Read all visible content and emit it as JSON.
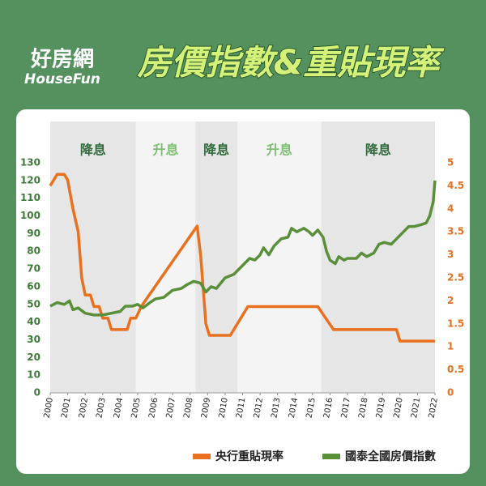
{
  "header": {
    "logo_zh": "好房網",
    "logo_en": "HouseFun",
    "title": "房價指數&重貼現率"
  },
  "chart_data": {
    "type": "line",
    "xlim": [
      2000,
      2022
    ],
    "xticks": [
      2000,
      2001,
      2002,
      2003,
      2004,
      2005,
      2006,
      2007,
      2008,
      2009,
      2010,
      2011,
      2012,
      2013,
      2014,
      2015,
      2016,
      2017,
      2018,
      2019,
      2020,
      2021,
      2022
    ],
    "ylim": [
      0,
      130
    ],
    "yticks": [
      0,
      10,
      20,
      30,
      40,
      50,
      60,
      70,
      80,
      90,
      100,
      110,
      120,
      130
    ],
    "y2lim": [
      0,
      5
    ],
    "y2ticks": [
      0,
      0.5,
      1,
      1.5,
      2,
      2.5,
      3,
      3.5,
      4,
      4.5,
      5
    ],
    "bands": [
      {
        "label": "降息",
        "start": 2000,
        "end": 2004.9,
        "color": "#e6e6e6",
        "text_color": "#2f6b3a"
      },
      {
        "label": "升息",
        "start": 2004.9,
        "end": 2008.3,
        "color": "#f4f4f4",
        "text_color": "#7cbf72"
      },
      {
        "label": "降息",
        "start": 2008.3,
        "end": 2010.7,
        "color": "#e6e6e6",
        "text_color": "#2f6b3a"
      },
      {
        "label": "升息",
        "start": 2010.7,
        "end": 2015.5,
        "color": "#f4f4f4",
        "text_color": "#7cbf72"
      },
      {
        "label": "降息",
        "start": 2015.5,
        "end": 2022,
        "color": "#e6e6e6",
        "text_color": "#2f6b3a"
      }
    ],
    "series": [
      {
        "name": "央行重貼現率",
        "color": "#e8701e",
        "axis": "y2",
        "x": [
          2000.0,
          2000.4,
          2000.8,
          2001.0,
          2001.3,
          2001.6,
          2001.8,
          2002.0,
          2002.3,
          2002.5,
          2002.8,
          2003.0,
          2003.3,
          2003.5,
          2004.4,
          2004.6,
          2004.9,
          2005.2,
          2008.4,
          2008.6,
          2008.9,
          2009.1,
          2010.3,
          2011.3,
          2015.3,
          2016.2,
          2019.8,
          2020.0,
          2022.0
        ],
        "values": [
          4.5,
          4.75,
          4.75,
          4.625,
          4.0,
          3.5,
          2.5,
          2.125,
          2.125,
          1.875,
          1.875,
          1.625,
          1.625,
          1.375,
          1.375,
          1.625,
          1.625,
          1.875,
          3.625,
          3.0,
          1.5,
          1.25,
          1.25,
          1.875,
          1.875,
          1.375,
          1.375,
          1.125,
          1.125
        ]
      },
      {
        "name": "國泰全國房價指數",
        "color": "#5a8f3a",
        "axis": "y",
        "x": [
          2000.0,
          2000.4,
          2000.8,
          2001.1,
          2001.3,
          2001.6,
          2002.0,
          2002.5,
          2003.0,
          2003.5,
          2004.0,
          2004.3,
          2004.7,
          2005.0,
          2005.3,
          2005.7,
          2006.0,
          2006.5,
          2007.0,
          2007.5,
          2007.8,
          2008.2,
          2008.6,
          2008.9,
          2009.2,
          2009.5,
          2010.0,
          2010.5,
          2011.0,
          2011.4,
          2011.7,
          2012.0,
          2012.2,
          2012.5,
          2012.8,
          2013.2,
          2013.6,
          2013.8,
          2014.1,
          2014.5,
          2014.8,
          2015.0,
          2015.3,
          2015.6,
          2015.8,
          2016.0,
          2016.3,
          2016.5,
          2016.8,
          2017.0,
          2017.5,
          2017.8,
          2018.1,
          2018.5,
          2018.8,
          2019.1,
          2019.5,
          2019.8,
          2020.2,
          2020.5,
          2020.8,
          2021.2,
          2021.5,
          2021.7,
          2021.9,
          2022.0
        ],
        "values": [
          49,
          51,
          50,
          52,
          47,
          48,
          45,
          44,
          44,
          45,
          46,
          49,
          49,
          50,
          48,
          51,
          53,
          54,
          58,
          59,
          61,
          63,
          62,
          57,
          60,
          59,
          65,
          67,
          72,
          76,
          75,
          78,
          82,
          78,
          83,
          87,
          88,
          93,
          91,
          93,
          91,
          89,
          92,
          88,
          80,
          75,
          73,
          77,
          75,
          76,
          76,
          79,
          77,
          79,
          84,
          85,
          84,
          87,
          91,
          94,
          94,
          95,
          96,
          100,
          108,
          120
        ]
      }
    ]
  }
}
